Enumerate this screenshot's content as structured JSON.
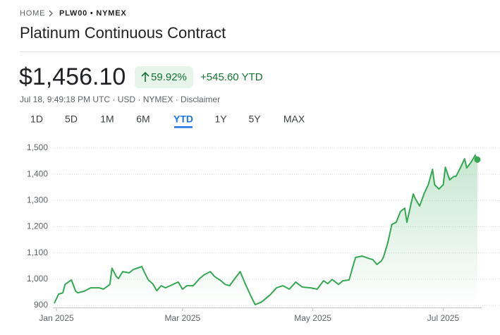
{
  "header": {
    "breadcrumb_home": "HOME",
    "breadcrumb_symbol": "PLW00 • NYMEX",
    "title": "Platinum Continuous Contract",
    "price": "$1,456.10",
    "change_pct": "59.92%",
    "change_abs": "+545.60 YTD",
    "meta": "Jul 18, 9:49:18 PM UTC · USD · NYMEX · Disclaimer"
  },
  "tabs": {
    "items": [
      "1D",
      "5D",
      "1M",
      "6M",
      "YTD",
      "1Y",
      "5Y",
      "MAX"
    ],
    "selected": 4
  },
  "chart_data": {
    "type": "line",
    "color": "#34a853",
    "x": [
      -1,
      1,
      3,
      4,
      7,
      9,
      10,
      13,
      16,
      20,
      22,
      25,
      26,
      28,
      29,
      31,
      34,
      36,
      40,
      41,
      43,
      45,
      47,
      49,
      51,
      54,
      57,
      59,
      61,
      64,
      67,
      69,
      72,
      74,
      77,
      79,
      81,
      84,
      86,
      88,
      91,
      93,
      96,
      100,
      103,
      106,
      109,
      112,
      115,
      119,
      122,
      125,
      127,
      129,
      132,
      134,
      137,
      139,
      140,
      143,
      147,
      148,
      150,
      152,
      153,
      155,
      157,
      159,
      161,
      163,
      164,
      167,
      168,
      170,
      172,
      174,
      176,
      177,
      179,
      181,
      182,
      184,
      186,
      187,
      189,
      191,
      192,
      194,
      196,
      197
    ],
    "values": [
      908,
      943,
      948,
      980,
      997,
      954,
      948,
      954,
      967,
      967,
      962,
      980,
      1042,
      1010,
      1002,
      1029,
      1024,
      1037,
      1048,
      1029,
      997,
      983,
      956,
      975,
      967,
      978,
      989,
      962,
      975,
      975,
      1002,
      1016,
      1029,
      1010,
      994,
      980,
      975,
      1008,
      1029,
      989,
      935,
      903,
      913,
      940,
      967,
      975,
      962,
      989,
      970,
      967,
      962,
      994,
      983,
      999,
      980,
      994,
      997,
      1056,
      1083,
      1088,
      1077,
      1075,
      1056,
      1069,
      1083,
      1137,
      1209,
      1217,
      1258,
      1271,
      1217,
      1325,
      1306,
      1279,
      1325,
      1360,
      1419,
      1360,
      1344,
      1360,
      1427,
      1379,
      1392,
      1392,
      1424,
      1459,
      1424,
      1446,
      1473,
      1456.1
    ],
    "xlim": [
      -1,
      199
    ],
    "xticks": [
      {
        "value": 0,
        "label": "Jan 2025"
      },
      {
        "value": 59,
        "label": "Mar 2025"
      },
      {
        "value": 120,
        "label": "May 2025"
      },
      {
        "value": 181,
        "label": "Jul 2025"
      }
    ],
    "ylim": [
      900,
      1500
    ],
    "yticks": [
      900,
      {
        "value": 1000,
        "label": "1,000"
      },
      {
        "value": 1100,
        "label": "1,100"
      },
      {
        "value": 1200,
        "label": "1,200"
      },
      {
        "value": 1300,
        "label": "1,300"
      },
      {
        "value": 1400,
        "label": "1,400"
      },
      {
        "value": 1500,
        "label": "1,500"
      }
    ],
    "grid": true
  }
}
